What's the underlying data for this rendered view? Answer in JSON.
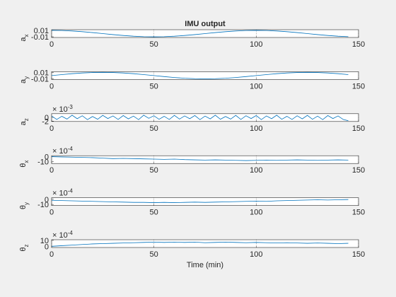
{
  "chart_data": [
    {
      "type": "line",
      "title": "IMU output",
      "ylabel": "a",
      "ylabel_sub": "x",
      "color": "#0072bd",
      "xgrid": true,
      "xlim": [
        0,
        150
      ],
      "xticks": [
        0,
        50,
        100,
        150
      ],
      "ylim": [
        -0.012,
        0.012
      ],
      "yticks": [
        -0.01,
        0.01
      ],
      "x": [
        0,
        5,
        10,
        15,
        20,
        25,
        30,
        35,
        40,
        45,
        50,
        55,
        60,
        65,
        70,
        75,
        80,
        85,
        90,
        95,
        100,
        105,
        110,
        115,
        120,
        125,
        130,
        135,
        140,
        145
      ],
      "values": [
        0.01,
        0.0095,
        0.0081,
        0.0059,
        0.0031,
        0,
        -0.0031,
        -0.0059,
        -0.0081,
        -0.0095,
        -0.01,
        -0.0095,
        -0.0081,
        -0.0059,
        -0.0031,
        0,
        0.0031,
        0.0059,
        0.0081,
        0.0095,
        0.01,
        0.0095,
        0.0081,
        0.0059,
        0.0031,
        0,
        -0.0031,
        -0.0059,
        -0.0081,
        -0.0095
      ]
    },
    {
      "type": "line",
      "ylabel": "a",
      "ylabel_sub": "y",
      "color": "#0072bd",
      "xgrid": true,
      "xlim": [
        0,
        150
      ],
      "xticks": [
        0,
        50,
        100,
        150
      ],
      "ylim": [
        -0.012,
        0.012
      ],
      "yticks": [
        -0.01,
        0.01
      ],
      "x": [
        0,
        5,
        10,
        15,
        20,
        25,
        30,
        35,
        40,
        45,
        50,
        55,
        60,
        65,
        70,
        75,
        80,
        85,
        90,
        95,
        100,
        105,
        110,
        115,
        120,
        125,
        130,
        135,
        140,
        145
      ],
      "values": [
        0,
        0.0031,
        0.0059,
        0.0081,
        0.0095,
        0.01,
        0.0095,
        0.0081,
        0.0059,
        0.0031,
        0,
        -0.0031,
        -0.0059,
        -0.0081,
        -0.0095,
        -0.01,
        -0.0095,
        -0.0081,
        -0.0059,
        -0.0031,
        0,
        0.0031,
        0.0059,
        0.0081,
        0.0095,
        0.01,
        0.0095,
        0.0081,
        0.0059,
        0.0031
      ]
    },
    {
      "type": "line",
      "ylabel": "a",
      "ylabel_sub": "z",
      "exponent_base": "× 10",
      "exponent_power": "-3",
      "color": "#0072bd",
      "xgrid": true,
      "xlim": [
        0,
        150
      ],
      "xticks": [
        0,
        50,
        100,
        150
      ],
      "ylim": [
        -2.2,
        2
      ],
      "yticks": [
        -2,
        0
      ],
      "x": [
        0,
        2.5,
        5,
        7.5,
        10,
        12.5,
        15,
        17.5,
        20,
        22.5,
        25,
        27.5,
        30,
        32.5,
        35,
        37.5,
        40,
        42.5,
        45,
        47.5,
        50,
        52.5,
        55,
        57.5,
        60,
        62.5,
        65,
        67.5,
        70,
        72.5,
        75,
        77.5,
        80,
        82.5,
        85,
        87.5,
        90,
        92.5,
        95,
        97.5,
        100,
        102.5,
        105,
        107.5,
        110,
        112.5,
        115,
        117.5,
        120,
        122.5,
        125,
        127.5,
        130,
        132.5,
        135,
        137.5,
        140,
        142.5,
        145
      ],
      "values": [
        0.8,
        -1.1,
        0.6,
        -0.9,
        1.2,
        -0.7,
        0.9,
        -1.2,
        0.5,
        -1,
        1.1,
        -0.6,
        0.8,
        -1.1,
        1,
        -0.8,
        0.7,
        -1.2,
        1.2,
        -0.5,
        0.9,
        -1,
        0.6,
        -1.1,
        1.1,
        -0.9,
        0.8,
        -0.7,
        1,
        -1.2,
        0.7,
        -0.8,
        1.2,
        -1,
        0.5,
        -0.9,
        1.1,
        -1.1,
        0.9,
        -0.6,
        1,
        -1.2,
        0.8,
        -0.7,
        1.2,
        -1,
        0.6,
        -1.1,
        0.9,
        -0.8,
        1.1,
        -1,
        0.7,
        -1.2,
        1,
        -0.6,
        0.8,
        -1.1,
        -1.8
      ]
    },
    {
      "type": "line",
      "ylabel": "θ",
      "ylabel_sub": "x",
      "exponent_base": "× 10",
      "exponent_power": "-4",
      "color": "#0072bd",
      "xgrid": true,
      "xlim": [
        0,
        150
      ],
      "xticks": [
        0,
        50,
        100,
        150
      ],
      "ylim": [
        -14,
        2
      ],
      "yticks": [
        -10,
        0
      ],
      "x": [
        0,
        5,
        10,
        15,
        20,
        25,
        30,
        35,
        40,
        45,
        50,
        55,
        60,
        65,
        70,
        75,
        80,
        85,
        90,
        95,
        100,
        105,
        110,
        115,
        120,
        125,
        130,
        135,
        140,
        145
      ],
      "values": [
        0,
        -0.5,
        -1,
        -1.5,
        -2,
        -3,
        -4,
        -3.5,
        -4,
        -4.5,
        -5,
        -5.5,
        -5,
        -6,
        -6.5,
        -7,
        -6.5,
        -7,
        -7.5,
        -8,
        -7.5,
        -7,
        -7.5,
        -7,
        -6.5,
        -7,
        -7.5,
        -7,
        -6.5,
        -7
      ]
    },
    {
      "type": "line",
      "ylabel": "θ",
      "ylabel_sub": "y",
      "exponent_base": "× 10",
      "exponent_power": "-4",
      "color": "#0072bd",
      "xgrid": true,
      "xlim": [
        0,
        150
      ],
      "xticks": [
        0,
        50,
        100,
        150
      ],
      "ylim": [
        -12,
        3
      ],
      "yticks": [
        -10,
        0
      ],
      "x": [
        0,
        5,
        10,
        15,
        20,
        25,
        30,
        35,
        40,
        45,
        50,
        55,
        60,
        65,
        70,
        75,
        80,
        85,
        90,
        95,
        100,
        105,
        110,
        115,
        120,
        125,
        130,
        135,
        140,
        145
      ],
      "values": [
        -2,
        -2.5,
        -3,
        -3.5,
        -4,
        -4.5,
        -5,
        -5.5,
        -6,
        -6,
        -6.5,
        -6,
        -6.5,
        -6,
        -5.5,
        -6,
        -5.5,
        -5,
        -4.5,
        -4,
        -3.5,
        -4,
        -3,
        -2.5,
        -2,
        -1.5,
        -1,
        -1.5,
        -1,
        -0.5
      ]
    },
    {
      "type": "line",
      "ylabel": "θ",
      "ylabel_sub": "z",
      "xlabel": "Time (min)",
      "exponent_base": "× 10",
      "exponent_power": "-4",
      "color": "#0072bd",
      "xgrid": true,
      "xlim": [
        0,
        150
      ],
      "xticks": [
        0,
        50,
        100,
        150
      ],
      "ylim": [
        -2,
        11
      ],
      "yticks": [
        0,
        10
      ],
      "x": [
        0,
        5,
        10,
        15,
        20,
        25,
        30,
        35,
        40,
        45,
        50,
        55,
        60,
        65,
        70,
        75,
        80,
        85,
        90,
        95,
        100,
        105,
        110,
        115,
        120,
        125,
        130,
        135,
        140,
        145
      ],
      "values": [
        0,
        1,
        2,
        3,
        4,
        4.5,
        5,
        5.5,
        6,
        6.5,
        7,
        6.5,
        7,
        6.5,
        7,
        6,
        6.5,
        7,
        6.5,
        6,
        6.5,
        6,
        5.5,
        6,
        5.5,
        5,
        5.5,
        5,
        4.5,
        5
      ]
    }
  ]
}
